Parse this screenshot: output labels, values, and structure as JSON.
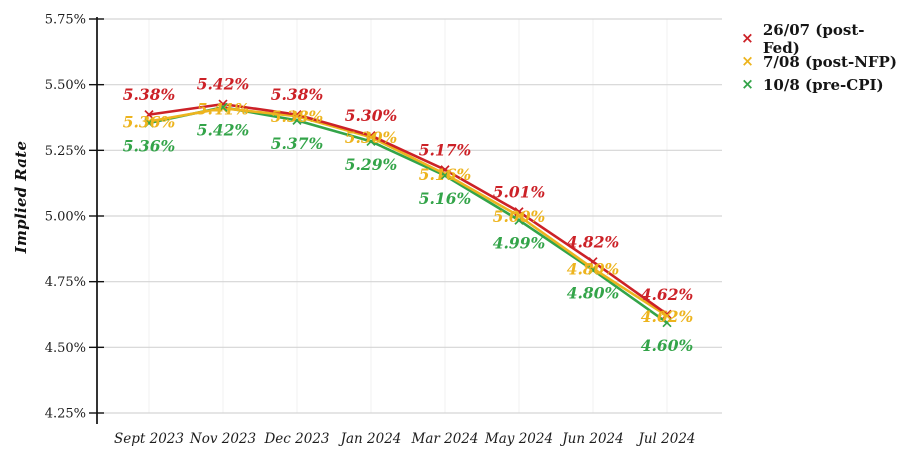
{
  "chart_data": {
    "type": "line",
    "title": "",
    "ylabel": "Implied Rate",
    "xlabel": "",
    "categories": [
      "Sept 2023",
      "Nov 2023",
      "Dec 2023",
      "Jan 2024",
      "Mar 2024",
      "May 2024",
      "Jun 2024",
      "Jul 2024"
    ],
    "y_ticks": [
      "5.75%",
      "5.50%",
      "5.25%",
      "5.00%",
      "4.75%",
      "4.50%",
      "4.25%"
    ],
    "ylim": [
      4.25,
      5.75
    ],
    "grid": "horizontal major gridlines, faint vertical category gridlines",
    "legend_position": "top-right",
    "legend_marker": "×",
    "axis_color": "#111111",
    "gridline_color": "#d5d5d5",
    "vertical_gridline_color": "#f1f1f1",
    "series": [
      {
        "name": "26/07 (post-Fed)",
        "color": "#cc2127",
        "marker": "x",
        "values": [
          5.38,
          5.42,
          5.38,
          5.3,
          5.17,
          5.01,
          4.82,
          4.62
        ],
        "labels": [
          "5.38%",
          "5.42%",
          "5.38%",
          "5.30%",
          "5.17%",
          "5.01%",
          "4.82%",
          "4.62%"
        ]
      },
      {
        "name": "7/08 (post-NFP)",
        "color": "#edb41e",
        "marker": "x",
        "values": [
          5.36,
          5.41,
          5.38,
          5.3,
          5.16,
          5.0,
          4.8,
          4.62
        ],
        "labels": [
          "5.36%",
          "5.41%",
          "5.38%",
          "5.30%",
          "5.16%",
          "5.00%",
          "4.80%",
          "4.62%"
        ]
      },
      {
        "name": "10/8 (pre-CPI)",
        "color": "#33a449",
        "marker": "x",
        "values": [
          5.36,
          5.42,
          5.37,
          5.29,
          5.16,
          4.99,
          4.8,
          4.6
        ],
        "labels": [
          "5.36%",
          "5.42%",
          "5.37%",
          "5.29%",
          "5.16%",
          "4.99%",
          "4.80%",
          "4.60%"
        ]
      }
    ]
  }
}
